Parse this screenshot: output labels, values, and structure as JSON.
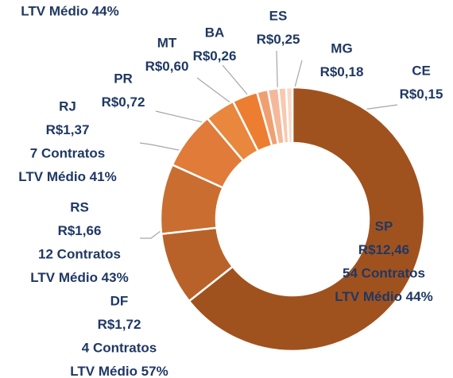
{
  "chart_data": {
    "type": "donut",
    "top_note": "LTV Médio 44%",
    "categories": [
      "SP",
      "DF",
      "RS",
      "RJ",
      "PR",
      "MT",
      "BA",
      "ES",
      "MG",
      "CE"
    ],
    "values": [
      12.46,
      1.72,
      1.66,
      1.37,
      0.72,
      0.6,
      0.26,
      0.25,
      0.18,
      0.15
    ],
    "value_labels": [
      "R$12,46",
      "R$1,72",
      "R$1,66",
      "R$1,37",
      "R$0,72",
      "R$0,60",
      "R$0,26",
      "R$0,25",
      "R$0,18",
      "R$0,15"
    ],
    "contracts": [
      "54 Contratos",
      "4 Contratos",
      "12 Contratos",
      "7 Contratos",
      null,
      null,
      null,
      null,
      null,
      null
    ],
    "ltv": [
      "LTV Médio 44%",
      "LTV Médio 57%",
      "LTV Médio 43%",
      "LTV Médio 41%",
      null,
      null,
      null,
      null,
      null,
      null
    ],
    "colors": [
      "#a0521e",
      "#b8622a",
      "#c96e30",
      "#e07b39",
      "#e8873d",
      "#ed7d31",
      "#f0a070",
      "#f4b89a",
      "#f7c9b0",
      "#fad9c8"
    ]
  }
}
